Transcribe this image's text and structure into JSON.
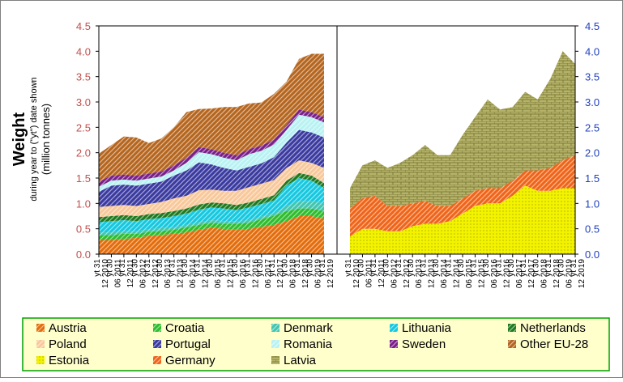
{
  "chart_data": {
    "type": "area",
    "stacked": true,
    "ylabel_main": "Weight",
    "ylabel_sub1": "during year to (\"yt\") date shown",
    "ylabel_sub2": "(million tonnes)",
    "ylim": [
      0,
      4.5
    ],
    "y_ticks": [
      "0.0",
      "0.5",
      "1.0",
      "1.5",
      "2.0",
      "2.5",
      "3.0",
      "3.5",
      "4.0",
      "4.5"
    ],
    "x_ticks": [
      "yt 31 12 2010",
      "yt 30 06 2011",
      "yt 31 12 2011",
      "yt 30 06 2012",
      "yt 31 12 2012",
      "yt 30 06 2013",
      "yt 31 12 2013",
      "yt 30 06 2014",
      "yt 31 12 2014",
      "yt 30 06 2015",
      "yt 31 12 2015",
      "yt 30 06 2016",
      "yt 31 12 2016",
      "yt 30 06 2017",
      "yt 31 12 2017",
      "yt 30 06 2018",
      "yt 31 12 2018",
      "yt 30 06 2019",
      "yt 31 12 2019"
    ],
    "legend": {
      "placement": "bottom",
      "entries": [
        {
          "name": "Austria",
          "color": "#e46c0a"
        },
        {
          "name": "Croatia",
          "color": "#2dbd2d"
        },
        {
          "name": "Denmark",
          "color": "#3fc5b0"
        },
        {
          "name": "Lithuania",
          "color": "#14c8e0"
        },
        {
          "name": "Netherlands",
          "color": "#1f7a1f"
        },
        {
          "name": "Poland",
          "color": "#f8c89a"
        },
        {
          "name": "Portugal",
          "color": "#3a3aa0"
        },
        {
          "name": "Romania",
          "color": "#b8f2f2"
        },
        {
          "name": "Sweden",
          "color": "#7a1f8a"
        },
        {
          "name": "Other EU-28",
          "color": "#b5651d"
        },
        {
          "name": "Estonia",
          "color": "#f3f300"
        },
        {
          "name": "Germany",
          "color": "#f06418"
        },
        {
          "name": "Latvia",
          "color": "#b5b36a"
        }
      ]
    },
    "panels": [
      {
        "id": "left",
        "series": [
          {
            "name": "Austria",
            "color": "#e46c0a",
            "values": [
              0.28,
              0.28,
              0.3,
              0.32,
              0.36,
              0.38,
              0.4,
              0.43,
              0.48,
              0.52,
              0.5,
              0.48,
              0.5,
              0.54,
              0.58,
              0.65,
              0.75,
              0.75,
              0.7
            ]
          },
          {
            "name": "Croatia",
            "color": "#2dbd2d",
            "values": [
              0.1,
              0.1,
              0.1,
              0.08,
              0.08,
              0.08,
              0.08,
              0.1,
              0.1,
              0.1,
              0.1,
              0.12,
              0.12,
              0.15,
              0.18,
              0.2,
              0.15,
              0.15,
              0.15
            ]
          },
          {
            "name": "Denmark",
            "color": "#3fc5b0",
            "values": [
              0.05,
              0.05,
              0.05,
              0.05,
              0.05,
              0.05,
              0.05,
              0.05,
              0.05,
              0.05,
              0.05,
              0.05,
              0.05,
              0.05,
              0.05,
              0.1,
              0.15,
              0.15,
              0.15
            ]
          },
          {
            "name": "Lithuania",
            "color": "#14c8e0",
            "values": [
              0.2,
              0.22,
              0.22,
              0.2,
              0.2,
              0.2,
              0.22,
              0.22,
              0.25,
              0.25,
              0.25,
              0.22,
              0.25,
              0.25,
              0.25,
              0.4,
              0.45,
              0.4,
              0.3
            ]
          },
          {
            "name": "Netherlands",
            "color": "#1f7a1f",
            "values": [
              0.1,
              0.1,
              0.1,
              0.1,
              0.1,
              0.1,
              0.1,
              0.1,
              0.1,
              0.1,
              0.1,
              0.1,
              0.1,
              0.1,
              0.1,
              0.1,
              0.1,
              0.1,
              0.1
            ]
          },
          {
            "name": "Poland",
            "color": "#f8c89a",
            "values": [
              0.2,
              0.2,
              0.2,
              0.2,
              0.2,
              0.22,
              0.25,
              0.25,
              0.28,
              0.25,
              0.25,
              0.28,
              0.3,
              0.3,
              0.3,
              0.25,
              0.25,
              0.25,
              0.3
            ]
          },
          {
            "name": "Portugal",
            "color": "#3a3aa0",
            "values": [
              0.3,
              0.4,
              0.4,
              0.4,
              0.4,
              0.4,
              0.45,
              0.5,
              0.55,
              0.5,
              0.45,
              0.4,
              0.4,
              0.4,
              0.45,
              0.5,
              0.6,
              0.6,
              0.6
            ]
          },
          {
            "name": "Romania",
            "color": "#b8f2f2",
            "values": [
              0.1,
              0.1,
              0.1,
              0.1,
              0.1,
              0.1,
              0.1,
              0.15,
              0.2,
              0.2,
              0.2,
              0.2,
              0.25,
              0.25,
              0.25,
              0.25,
              0.3,
              0.3,
              0.3
            ]
          },
          {
            "name": "Sweden",
            "color": "#7a1f8a",
            "values": [
              0.1,
              0.1,
              0.1,
              0.1,
              0.1,
              0.1,
              0.1,
              0.1,
              0.1,
              0.1,
              0.1,
              0.1,
              0.1,
              0.1,
              0.1,
              0.1,
              0.1,
              0.1,
              0.1
            ]
          },
          {
            "name": "Other EU-28",
            "color": "#b5651d",
            "values": [
              0.55,
              0.6,
              0.75,
              0.75,
              0.6,
              0.65,
              0.75,
              0.9,
              0.75,
              0.8,
              0.9,
              0.95,
              0.9,
              0.85,
              0.9,
              0.85,
              1.0,
              1.15,
              1.25
            ]
          }
        ]
      },
      {
        "id": "right",
        "series": [
          {
            "name": "Estonia",
            "color": "#f3f300",
            "values": [
              0.35,
              0.5,
              0.5,
              0.45,
              0.45,
              0.55,
              0.6,
              0.6,
              0.65,
              0.8,
              0.95,
              1.0,
              1.0,
              1.15,
              1.35,
              1.25,
              1.25,
              1.3,
              1.3
            ]
          },
          {
            "name": "Germany",
            "color": "#f06418",
            "values": [
              0.55,
              0.6,
              0.65,
              0.5,
              0.5,
              0.45,
              0.45,
              0.35,
              0.3,
              0.3,
              0.3,
              0.3,
              0.3,
              0.3,
              0.3,
              0.4,
              0.45,
              0.55,
              0.65
            ]
          },
          {
            "name": "Latvia",
            "color": "#b5b36a",
            "values": [
              0.4,
              0.65,
              0.7,
              0.75,
              0.85,
              0.95,
              1.1,
              1.0,
              1.0,
              1.25,
              1.45,
              1.75,
              1.55,
              1.45,
              1.55,
              1.4,
              1.75,
              2.15,
              1.8
            ]
          }
        ]
      }
    ]
  }
}
